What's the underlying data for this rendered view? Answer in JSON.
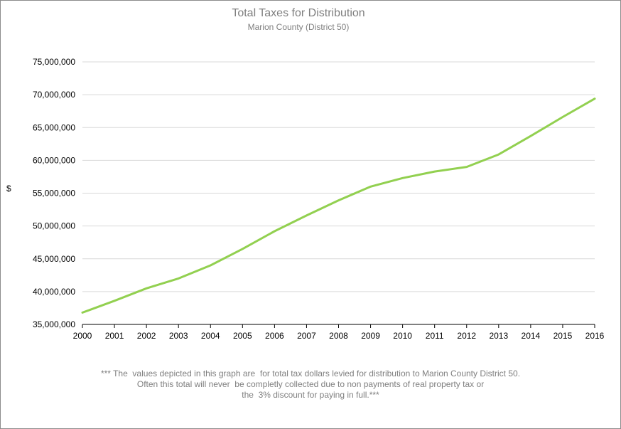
{
  "chart_data": {
    "type": "line",
    "title": "Total Taxes for Distribution",
    "subtitle": "Marion County (District 50)",
    "xlabel": "",
    "ylabel": "$",
    "x": [
      "2000",
      "2001",
      "2002",
      "2003",
      "2004",
      "2005",
      "2006",
      "2007",
      "2008",
      "2009",
      "2010",
      "2011",
      "2012",
      "2013",
      "2014",
      "2015",
      "2016"
    ],
    "series": [
      {
        "values": [
          36800000,
          38600000,
          40500000,
          42000000,
          44000000,
          46500000,
          49200000,
          51600000,
          53900000,
          56000000,
          57300000,
          58300000,
          59000000,
          60900000,
          63700000,
          66600000,
          69400000
        ],
        "color": "#92d050"
      }
    ],
    "ylim": [
      35000000,
      75000000
    ],
    "yticks": [
      35000000,
      40000000,
      45000000,
      50000000,
      55000000,
      60000000,
      65000000,
      70000000,
      75000000
    ],
    "ytick_labels": [
      "35,000,000",
      "40,000,000",
      "45,000,000",
      "50,000,000",
      "55,000,000",
      "60,000,000",
      "65,000,000",
      "70,000,000",
      "75,000,000"
    ],
    "grid": true,
    "legend": "none"
  },
  "footnote": {
    "line1": "*** The  values depicted in this graph are  for total tax dollars levied for distribution to Marion County District 50.",
    "line2": "Often this total will never  be completly collected due to non payments of real property tax or",
    "line3": "the  3% discount for paying in full.***"
  },
  "colors": {
    "gridline": "#d9d9d9",
    "axis": "#000000",
    "title": "#7f7f7f"
  }
}
